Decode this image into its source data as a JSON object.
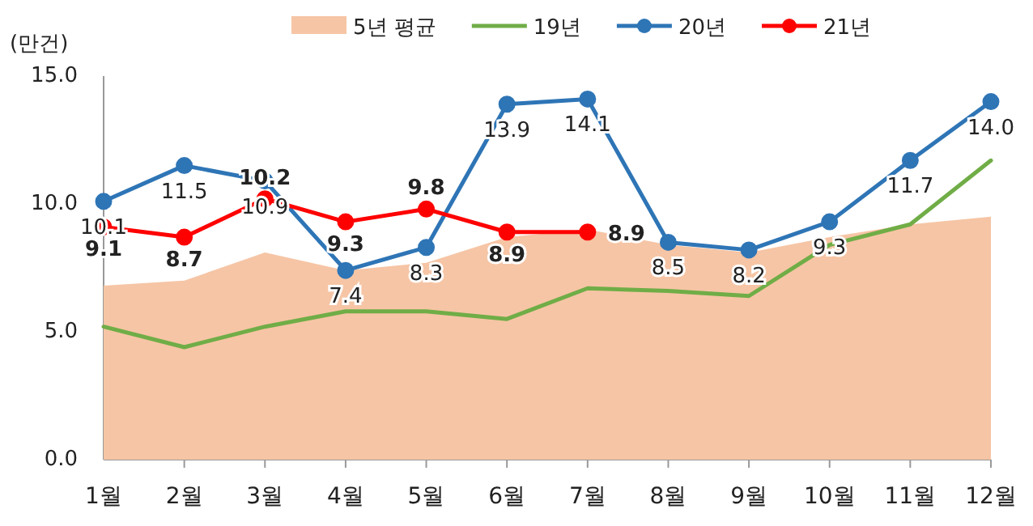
{
  "chart_data": {
    "type": "line",
    "ylabel": "(만건)",
    "categories": [
      "1월",
      "2월",
      "3월",
      "4월",
      "5월",
      "6월",
      "7월",
      "8월",
      "9월",
      "10월",
      "11월",
      "12월"
    ],
    "ylim": [
      0,
      15
    ],
    "yticks": [
      {
        "value": 0,
        "label": "0.0"
      },
      {
        "value": 5,
        "label": "5.0"
      },
      {
        "value": 10,
        "label": "10.0"
      },
      {
        "value": 15,
        "label": "15.0"
      }
    ],
    "legend": "top",
    "grid": false,
    "series": [
      {
        "name": "5년 평균",
        "type": "area",
        "color": "#f6c5a5",
        "values": [
          6.8,
          7.0,
          8.1,
          7.4,
          7.7,
          8.7,
          9.0,
          8.4,
          8.1,
          8.7,
          9.2,
          9.5
        ]
      },
      {
        "name": "19년",
        "color": "#70ad47",
        "marker": "none",
        "values": [
          5.2,
          4.4,
          5.2,
          5.8,
          5.8,
          5.5,
          6.7,
          6.6,
          6.4,
          8.4,
          9.2,
          11.7
        ]
      },
      {
        "name": "20년",
        "color": "#2e75b6",
        "marker": "circle",
        "values": [
          10.1,
          11.5,
          10.9,
          7.4,
          8.3,
          13.9,
          14.1,
          8.5,
          8.2,
          9.3,
          11.7,
          14.0
        ],
        "value_labels": [
          "10.1",
          "11.5",
          "10.9",
          "7.4",
          "8.3",
          "13.9",
          "14.1",
          "8.5",
          "8.2",
          "9.3",
          "11.7",
          "14.0"
        ]
      },
      {
        "name": "21년",
        "color": "#ff0000",
        "marker": "circle",
        "values": [
          9.1,
          8.7,
          10.2,
          9.3,
          9.8,
          8.9,
          8.9,
          null,
          null,
          null,
          null,
          null
        ],
        "value_labels": [
          "9.1",
          "8.7",
          "10.2",
          "9.3",
          "9.8",
          "8.9",
          "8.9",
          null,
          null,
          null,
          null,
          null
        ]
      }
    ]
  }
}
